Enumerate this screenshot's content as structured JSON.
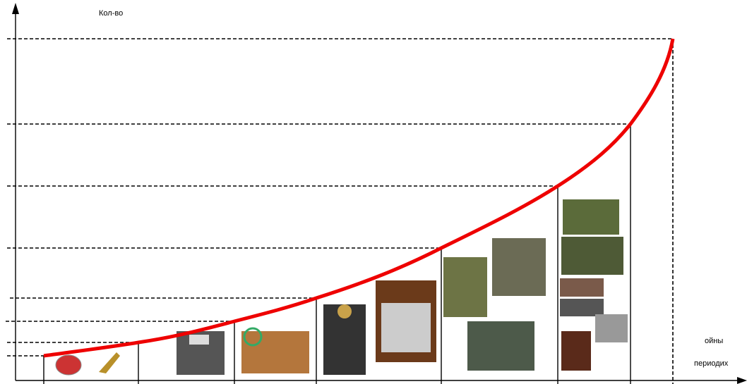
{
  "axis": {
    "y_label": "Кол-во",
    "x_label_lines": [
      "ойны",
      "периодих"
    ]
  }
}
